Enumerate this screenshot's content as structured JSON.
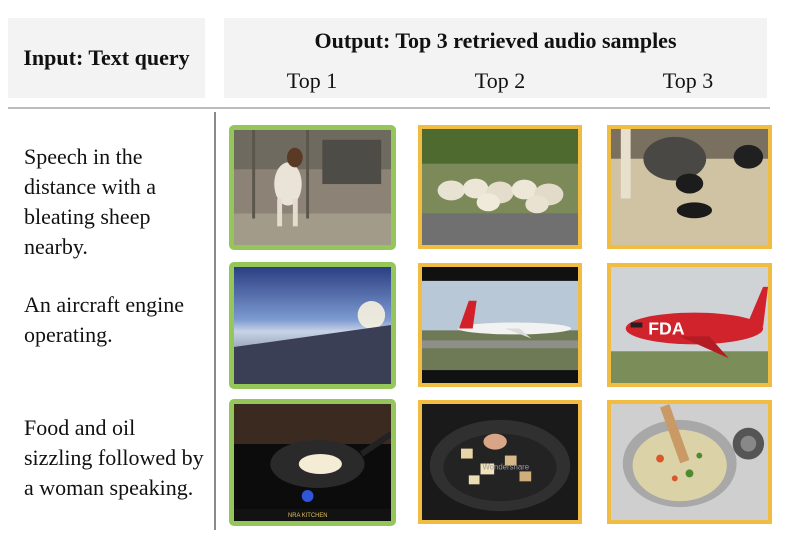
{
  "header": {
    "input_label": "Input: Text query",
    "output_label": "Output: Top 3 retrieved audio samples",
    "columns": [
      "Top 1",
      "Top 2",
      "Top 3"
    ]
  },
  "queries": [
    "Speech in the distance with a bleating sheep nearby.",
    "An aircraft engine operating.",
    "Food and oil sizzling followed by a woman speaking."
  ],
  "thumbnails": {
    "row1": [
      "goat-standing-frame",
      "sheep-flock-frame",
      "sheep-with-lambs-frame"
    ],
    "row2": [
      "sky-horizon-frame",
      "turkish-airlines-plane-frame",
      "fda-plane-frame"
    ],
    "row3": [
      "frying-pan-frame",
      "wok-stir-fry-frame",
      "soup-pot-frame"
    ],
    "overlay_texts": [
      "FDA",
      "NRA KITCHEN",
      "Wondershare"
    ]
  },
  "colors": {
    "top1_border": "#94c65a",
    "other_border": "#f0bc42",
    "header_bg": "#f3f3f3"
  }
}
